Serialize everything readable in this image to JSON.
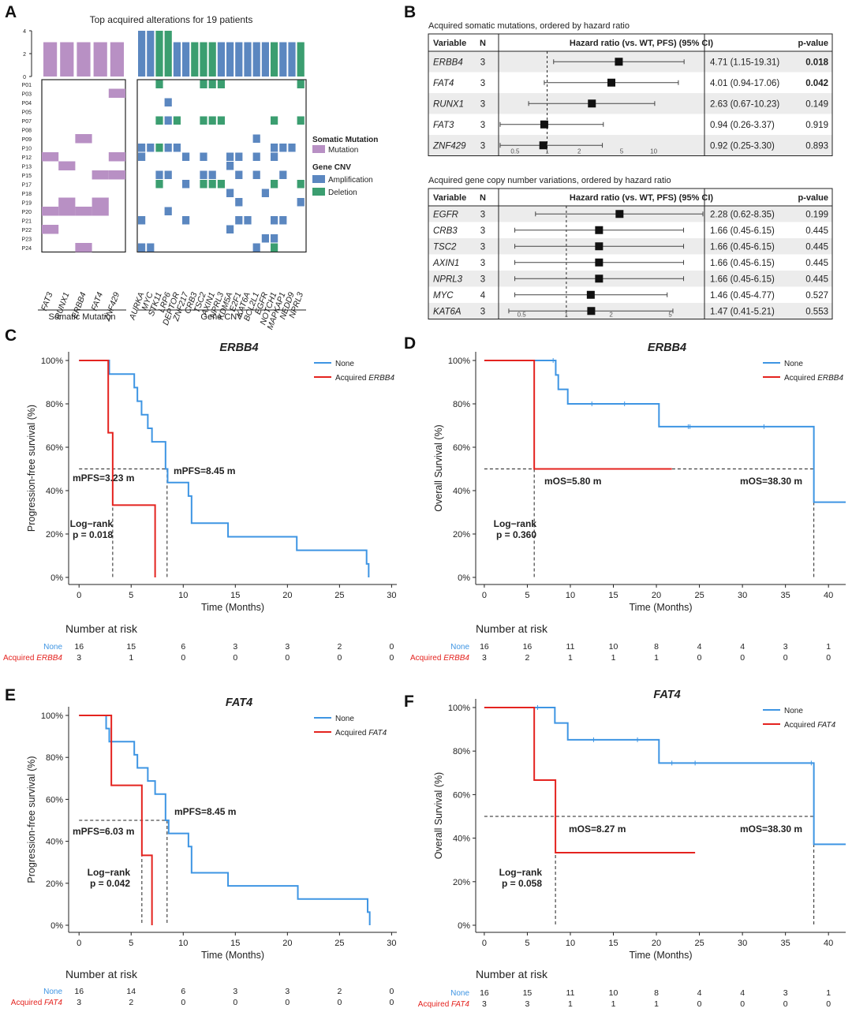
{
  "colors": {
    "mutation": "#b890c4",
    "amplification": "#5b87c0",
    "deletion": "#3b9e70",
    "none_line": "#3e95e3",
    "acquired_line": "#e4231f",
    "row_shade": "#ececec"
  },
  "panel_labels": [
    "A",
    "B",
    "C",
    "D",
    "E",
    "F"
  ],
  "chart_data": [
    {
      "id": "A",
      "type": "heatmap",
      "title": "Top acquired alterations for 19 patients",
      "bar_ylim": [
        0,
        4
      ],
      "bar_ticks": [
        "0",
        "2",
        "4"
      ],
      "patients": [
        "P01",
        "P03",
        "P04",
        "P05",
        "P07",
        "P08",
        "P09",
        "P10",
        "P12",
        "P13",
        "P15",
        "P17",
        "P18",
        "P19",
        "P20",
        "P21",
        "P22",
        "P23",
        "P24"
      ],
      "somatic": {
        "group_label": "Somatic Mutation",
        "genes": [
          "FAT3",
          "RUNX1",
          "ERBB4",
          "FAT4",
          "ZNF429"
        ],
        "bar_counts": [
          3,
          3,
          3,
          3,
          3
        ],
        "cells": [
          [
            0,
            0,
            0,
            0,
            0
          ],
          [
            0,
            0,
            0,
            0,
            1
          ],
          [
            0,
            0,
            0,
            0,
            0
          ],
          [
            0,
            0,
            0,
            0,
            0
          ],
          [
            0,
            0,
            0,
            0,
            0
          ],
          [
            0,
            0,
            0,
            0,
            0
          ],
          [
            0,
            0,
            1,
            0,
            0
          ],
          [
            0,
            0,
            0,
            0,
            0
          ],
          [
            1,
            0,
            0,
            0,
            1
          ],
          [
            0,
            1,
            0,
            0,
            0
          ],
          [
            0,
            0,
            0,
            1,
            1
          ],
          [
            0,
            0,
            0,
            0,
            0
          ],
          [
            0,
            0,
            0,
            0,
            0
          ],
          [
            0,
            1,
            0,
            1,
            0
          ],
          [
            1,
            1,
            1,
            1,
            0
          ],
          [
            0,
            0,
            0,
            0,
            0
          ],
          [
            1,
            0,
            0,
            0,
            0
          ],
          [
            0,
            0,
            0,
            0,
            0
          ],
          [
            0,
            0,
            1,
            0,
            0
          ]
        ]
      },
      "cnv": {
        "group_label": "Gene CNV",
        "genes": [
          "AURKA",
          "MYC",
          "STK11",
          "LRP6",
          "DEPTOR",
          "ZNF217",
          "CRB3",
          "TSC2",
          "AXIN1",
          "NPRL3",
          "KDM5A",
          "E2F1",
          "KAT6A",
          "BCL2L1",
          "EGFR",
          "NOTCH1",
          "MAPKAP1",
          "NEDD9",
          "NPRL3"
        ],
        "bar_counts": [
          4,
          4,
          4,
          4,
          3,
          3,
          3,
          3,
          3,
          3,
          3,
          3,
          3,
          3,
          3,
          3,
          3,
          3,
          3
        ],
        "bar_types": [
          "A",
          "A",
          "D",
          "D",
          "A",
          "A",
          "D",
          "D",
          "D",
          "A",
          "A",
          "A",
          "A",
          "A",
          "A",
          "D",
          "A",
          "A",
          "D"
        ],
        "cells": [
          "..D....DDD........D",
          "...................",
          "...A...............",
          "...................",
          "..DAD..DDD.....D..D",
          "...................",
          ".............A.....",
          "AADAA..........AAA.",
          "A....A.A..AA.A.A...",
          "..........A........",
          "..AA...AA..A.A..A..",
          "..D..A.DDD.....D..D",
          "..........A...A....",
          "...........A......A",
          "...A...............",
          "A....A.....AA..AA..",
          "..........A........",
          "..............AA...",
          "AA...........A.D..."
        ]
      },
      "legend": {
        "somatic_title": "Somatic Mutation",
        "mutation_label": "Mutation",
        "cnv_title": "Gene CNV",
        "amp_label": "Amplification",
        "del_label": "Deletion"
      }
    },
    {
      "id": "B1",
      "type": "table",
      "title": "Acquired somatic mutations, ordered by hazard ratio",
      "headers": {
        "variable": "Variable",
        "n": "N",
        "hr": "Hazard ratio (vs. WT, PFS)  (95% CI)",
        "p": "p-value"
      },
      "xscale": "log",
      "xlim": [
        0.35,
        30
      ],
      "ticks": [
        0.5,
        1,
        2,
        5,
        10
      ],
      "tick_labels": [
        "0.5",
        "1",
        "2",
        "5",
        "10"
      ],
      "rows": [
        {
          "gene": "ERBB4",
          "n": "3",
          "hr": 4.71,
          "lo": 1.15,
          "hi": 19.31,
          "text": "4.71 (1.15-19.31)",
          "p": "0.018",
          "bold": true
        },
        {
          "gene": "FAT4",
          "n": "3",
          "hr": 4.01,
          "lo": 0.94,
          "hi": 17.06,
          "text": "4.01 (0.94-17.06)",
          "p": "0.042",
          "bold": true
        },
        {
          "gene": "RUNX1",
          "n": "3",
          "hr": 2.63,
          "lo": 0.67,
          "hi": 10.23,
          "text": "2.63 (0.67-10.23)",
          "p": "0.149",
          "bold": false
        },
        {
          "gene": "FAT3",
          "n": "3",
          "hr": 0.94,
          "lo": 0.26,
          "hi": 3.37,
          "text": "0.94 (0.26-3.37)",
          "p": "0.919",
          "bold": false
        },
        {
          "gene": "ZNF429",
          "n": "3",
          "hr": 0.92,
          "lo": 0.25,
          "hi": 3.3,
          "text": "0.92 (0.25-3.30)",
          "p": "0.893",
          "bold": false
        }
      ]
    },
    {
      "id": "B2",
      "type": "table",
      "title": "Acquired gene copy number variations, ordered by hazard ratio",
      "headers": {
        "variable": "Variable",
        "n": "N",
        "hr": "Hazard ratio (vs. WT, PFS) (95% CI)",
        "p": "p-value"
      },
      "xscale": "log",
      "xlim": [
        0.35,
        8.5
      ],
      "ticks": [
        0.5,
        1,
        2,
        5
      ],
      "tick_labels": [
        "0.5",
        "1",
        "2",
        "5"
      ],
      "rows": [
        {
          "gene": "EGFR",
          "n": "3",
          "hr": 2.28,
          "lo": 0.62,
          "hi": 8.35,
          "text": "2.28  (0.62-8.35)",
          "p": "0.199",
          "bold": false
        },
        {
          "gene": "CRB3",
          "n": "3",
          "hr": 1.66,
          "lo": 0.45,
          "hi": 6.15,
          "text": "1.66  (0.45-6.15)",
          "p": "0.445",
          "bold": false
        },
        {
          "gene": "TSC2",
          "n": "3",
          "hr": 1.66,
          "lo": 0.45,
          "hi": 6.15,
          "text": "1.66  (0.45-6.15)",
          "p": "0.445",
          "bold": false
        },
        {
          "gene": "AXIN1",
          "n": "3",
          "hr": 1.66,
          "lo": 0.45,
          "hi": 6.15,
          "text": "1.66  (0.45-6.15)",
          "p": "0.445",
          "bold": false
        },
        {
          "gene": "NPRL3",
          "n": "3",
          "hr": 1.66,
          "lo": 0.45,
          "hi": 6.15,
          "text": "1.66  (0.45-6.15)",
          "p": "0.445",
          "bold": false
        },
        {
          "gene": "MYC",
          "n": "4",
          "hr": 1.46,
          "lo": 0.45,
          "hi": 4.77,
          "text": "1.46  (0.45-4.77)",
          "p": "0.527",
          "bold": false
        },
        {
          "gene": "KAT6A",
          "n": "3",
          "hr": 1.47,
          "lo": 0.41,
          "hi": 5.21,
          "text": "1.47  (0.41-5.21)",
          "p": "0.553",
          "bold": false
        }
      ]
    },
    {
      "id": "C",
      "type": "line",
      "title": "ERBB4",
      "xlabel": "Time (Months)",
      "ylabel": "Progression-free survival (%)",
      "xlim": [
        -1,
        30.5
      ],
      "ylim": [
        0,
        1
      ],
      "xticks": [
        0,
        5,
        10,
        15,
        20,
        25,
        30
      ],
      "yticks": [
        "0%",
        "20%",
        "40%",
        "60%",
        "80%",
        "100%"
      ],
      "legend": [
        "None",
        "Acquired ERBB4"
      ],
      "series": [
        {
          "name": "None",
          "x": [
            0,
            2.9,
            5.3,
            5.6,
            6.0,
            6.6,
            7.0,
            8.3,
            8.5,
            10.5,
            10.8,
            14.3,
            20.9,
            27.6,
            27.8
          ],
          "y": [
            1.0,
            0.9375,
            0.875,
            0.8125,
            0.75,
            0.6875,
            0.625,
            0.5,
            0.4375,
            0.375,
            0.25,
            0.1875,
            0.125,
            0.0625,
            0.0
          ],
          "censor_x": [],
          "censor_y": []
        },
        {
          "name": "Acquired ERBB4",
          "x": [
            0,
            2.8,
            3.23,
            7.3
          ],
          "y": [
            1.0,
            0.6667,
            0.3333,
            0.0
          ],
          "censor_x": [],
          "censor_y": []
        }
      ],
      "median_lines": [
        {
          "x": 3.23,
          "label": "mPFS=3.23 m"
        },
        {
          "x": 8.45,
          "label": "mPFS=8.45 m"
        }
      ],
      "logrank": [
        "Log−rank",
        "p = 0.018"
      ],
      "risk": {
        "title": "Number at risk",
        "groups": [
          "None",
          "Acquired ERBB4"
        ],
        "none_word": "None",
        "acq_word": "Acquired",
        "acq_gene": "ERBB4",
        "times": [
          0,
          5,
          10,
          15,
          20,
          25,
          30
        ],
        "none": [
          "16",
          "15",
          "6",
          "3",
          "3",
          "2",
          "0"
        ],
        "acquired": [
          "3",
          "1",
          "0",
          "0",
          "0",
          "0",
          "0"
        ]
      }
    },
    {
      "id": "D",
      "type": "line",
      "title": "ERBB4",
      "xlabel": "Time (Months)",
      "ylabel": "Overall Survival (%)",
      "xlim": [
        -1,
        42
      ],
      "ylim": [
        0,
        1
      ],
      "xticks": [
        0,
        5,
        10,
        15,
        20,
        25,
        30,
        35,
        40
      ],
      "yticks": [
        "0%",
        "20%",
        "40%",
        "60%",
        "80%",
        "100%"
      ],
      "legend": [
        "None",
        "Acquired ERBB4"
      ],
      "series": [
        {
          "name": "None",
          "x": [
            0,
            8.3,
            8.6,
            9.7,
            20.3,
            38.3,
            42
          ],
          "y": [
            1.0,
            0.933,
            0.867,
            0.8,
            0.695,
            0.347,
            0.347
          ],
          "censor_x": [
            8.0,
            12.5,
            16.3,
            23.7,
            23.9,
            32.5
          ],
          "censor_y": [
            1.0,
            0.8,
            0.8,
            0.695,
            0.695,
            0.695
          ]
        },
        {
          "name": "Acquired ERBB4",
          "x": [
            0,
            5.8,
            21.8
          ],
          "y": [
            1.0,
            0.5,
            0.5
          ],
          "censor_x": [],
          "censor_y": []
        }
      ],
      "median_lines": [
        {
          "x": 5.8,
          "label": "mOS=5.80 m"
        },
        {
          "x": 38.3,
          "label": "mOS=38.30 m"
        }
      ],
      "logrank": [
        "Log−rank",
        "p = 0.360"
      ],
      "risk": {
        "title": "Number at risk",
        "groups": [
          "None",
          "Acquired ERBB4"
        ],
        "none_word": "None",
        "acq_word": "Acquired",
        "acq_gene": "ERBB4",
        "times": [
          0,
          5,
          10,
          15,
          20,
          25,
          30,
          35,
          40
        ],
        "none": [
          "16",
          "16",
          "11",
          "10",
          "8",
          "4",
          "4",
          "3",
          "1"
        ],
        "acquired": [
          "3",
          "2",
          "1",
          "1",
          "1",
          "0",
          "0",
          "0",
          "0"
        ]
      }
    },
    {
      "id": "E",
      "type": "line",
      "title": "FAT4",
      "xlabel": "Time (Months)",
      "ylabel": "Progression-free survival (%)",
      "xlim": [
        -1,
        30.5
      ],
      "ylim": [
        0,
        1
      ],
      "xticks": [
        0,
        5,
        10,
        15,
        20,
        25,
        30
      ],
      "yticks": [
        "0%",
        "20%",
        "40%",
        "60%",
        "80%",
        "100%"
      ],
      "legend": [
        "None",
        "Acquired FAT4"
      ],
      "series": [
        {
          "name": "None",
          "x": [
            0,
            2.6,
            2.9,
            5.3,
            5.6,
            6.6,
            7.3,
            8.3,
            8.6,
            10.5,
            10.8,
            14.3,
            21.0,
            27.7,
            27.9
          ],
          "y": [
            1.0,
            0.9375,
            0.875,
            0.8125,
            0.75,
            0.6875,
            0.625,
            0.5,
            0.4375,
            0.375,
            0.25,
            0.1875,
            0.125,
            0.0625,
            0.0
          ],
          "censor_x": [],
          "censor_y": []
        },
        {
          "name": "Acquired FAT4",
          "x": [
            0,
            3.1,
            6.03,
            7.0
          ],
          "y": [
            1.0,
            0.6667,
            0.3333,
            0.0
          ],
          "censor_x": [],
          "censor_y": []
        }
      ],
      "median_lines": [
        {
          "x": 6.03,
          "label": "mPFS=6.03 m"
        },
        {
          "x": 8.45,
          "label": "mPFS=8.45 m"
        }
      ],
      "logrank": [
        "Log−rank",
        "p = 0.042"
      ],
      "risk": {
        "title": "Number at risk",
        "groups": [
          "None",
          "Acquired FAT4"
        ],
        "none_word": "None",
        "acq_word": "Acquired",
        "acq_gene": "FAT4",
        "times": [
          0,
          5,
          10,
          15,
          20,
          25,
          30
        ],
        "none": [
          "16",
          "14",
          "6",
          "3",
          "3",
          "2",
          "0"
        ],
        "acquired": [
          "3",
          "2",
          "0",
          "0",
          "0",
          "0",
          "0"
        ]
      }
    },
    {
      "id": "F",
      "type": "line",
      "title": "FAT4",
      "xlabel": "Time (Months)",
      "ylabel": "Overall Survival (%)",
      "xlim": [
        -1,
        42
      ],
      "ylim": [
        0,
        1
      ],
      "xticks": [
        0,
        5,
        10,
        15,
        20,
        25,
        30,
        35,
        40
      ],
      "yticks": [
        "0%",
        "20%",
        "40%",
        "60%",
        "80%",
        "100%"
      ],
      "legend": [
        "None",
        "Acquired FAT4"
      ],
      "series": [
        {
          "name": "None",
          "x": [
            0,
            8.2,
            9.7,
            20.3,
            38.3,
            42
          ],
          "y": [
            1.0,
            0.929,
            0.852,
            0.745,
            0.372,
            0.372
          ],
          "censor_x": [
            6.2,
            12.7,
            17.8,
            21.8,
            24.5,
            38.0
          ],
          "censor_y": [
            1.0,
            0.852,
            0.852,
            0.745,
            0.745,
            0.745
          ]
        },
        {
          "name": "Acquired FAT4",
          "x": [
            0,
            5.8,
            8.27,
            24.5
          ],
          "y": [
            1.0,
            0.6667,
            0.3333,
            0.3333
          ],
          "censor_x": [],
          "censor_y": []
        }
      ],
      "median_lines": [
        {
          "x": 8.27,
          "label": "mOS=8.27 m"
        },
        {
          "x": 38.3,
          "label": "mOS=38.30 m"
        }
      ],
      "logrank": [
        "Log−rank",
        "p = 0.058"
      ],
      "risk": {
        "title": "Number at risk",
        "groups": [
          "None",
          "Acquired FAT4"
        ],
        "none_word": "None",
        "acq_word": "Acquired",
        "acq_gene": "FAT4",
        "times": [
          0,
          5,
          10,
          15,
          20,
          25,
          30,
          35,
          40
        ],
        "none": [
          "16",
          "15",
          "11",
          "10",
          "8",
          "4",
          "4",
          "3",
          "1"
        ],
        "acquired": [
          "3",
          "3",
          "1",
          "1",
          "1",
          "0",
          "0",
          "0",
          "0"
        ]
      }
    }
  ]
}
